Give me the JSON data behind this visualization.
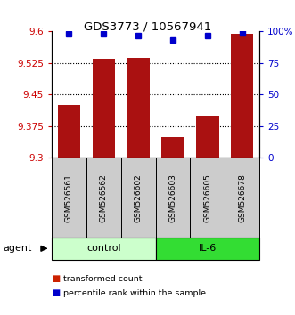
{
  "title": "GDS3773 / 10567941",
  "samples": [
    "GSM526561",
    "GSM526562",
    "GSM526602",
    "GSM526603",
    "GSM526605",
    "GSM526678"
  ],
  "bar_values": [
    9.425,
    9.535,
    9.538,
    9.348,
    9.4,
    9.595
  ],
  "percentile_values": [
    98,
    98,
    97,
    93,
    97,
    99
  ],
  "ylim_left": [
    9.3,
    9.6
  ],
  "ylim_right": [
    0,
    100
  ],
  "yticks_left": [
    9.3,
    9.375,
    9.45,
    9.525,
    9.6
  ],
  "yticks_right": [
    0,
    25,
    50,
    75,
    100
  ],
  "ytick_labels_right": [
    "0",
    "25",
    "50",
    "75",
    "100%"
  ],
  "bar_color": "#aa1111",
  "dot_color": "#0000cc",
  "bar_baseline": 9.3,
  "groups": [
    {
      "label": "control",
      "indices": [
        0,
        1,
        2
      ],
      "color": "#ccffcc"
    },
    {
      "label": "IL-6",
      "indices": [
        3,
        4,
        5
      ],
      "color": "#33dd33"
    }
  ],
  "agent_label": "agent",
  "left_yaxis_color": "#cc0000",
  "right_yaxis_color": "#0000cc",
  "legend_items": [
    {
      "color": "#cc2200",
      "label": "transformed count"
    },
    {
      "color": "#0000cc",
      "label": "percentile rank within the sample"
    }
  ],
  "bar_width": 0.65,
  "sample_box_color": "#cccccc"
}
